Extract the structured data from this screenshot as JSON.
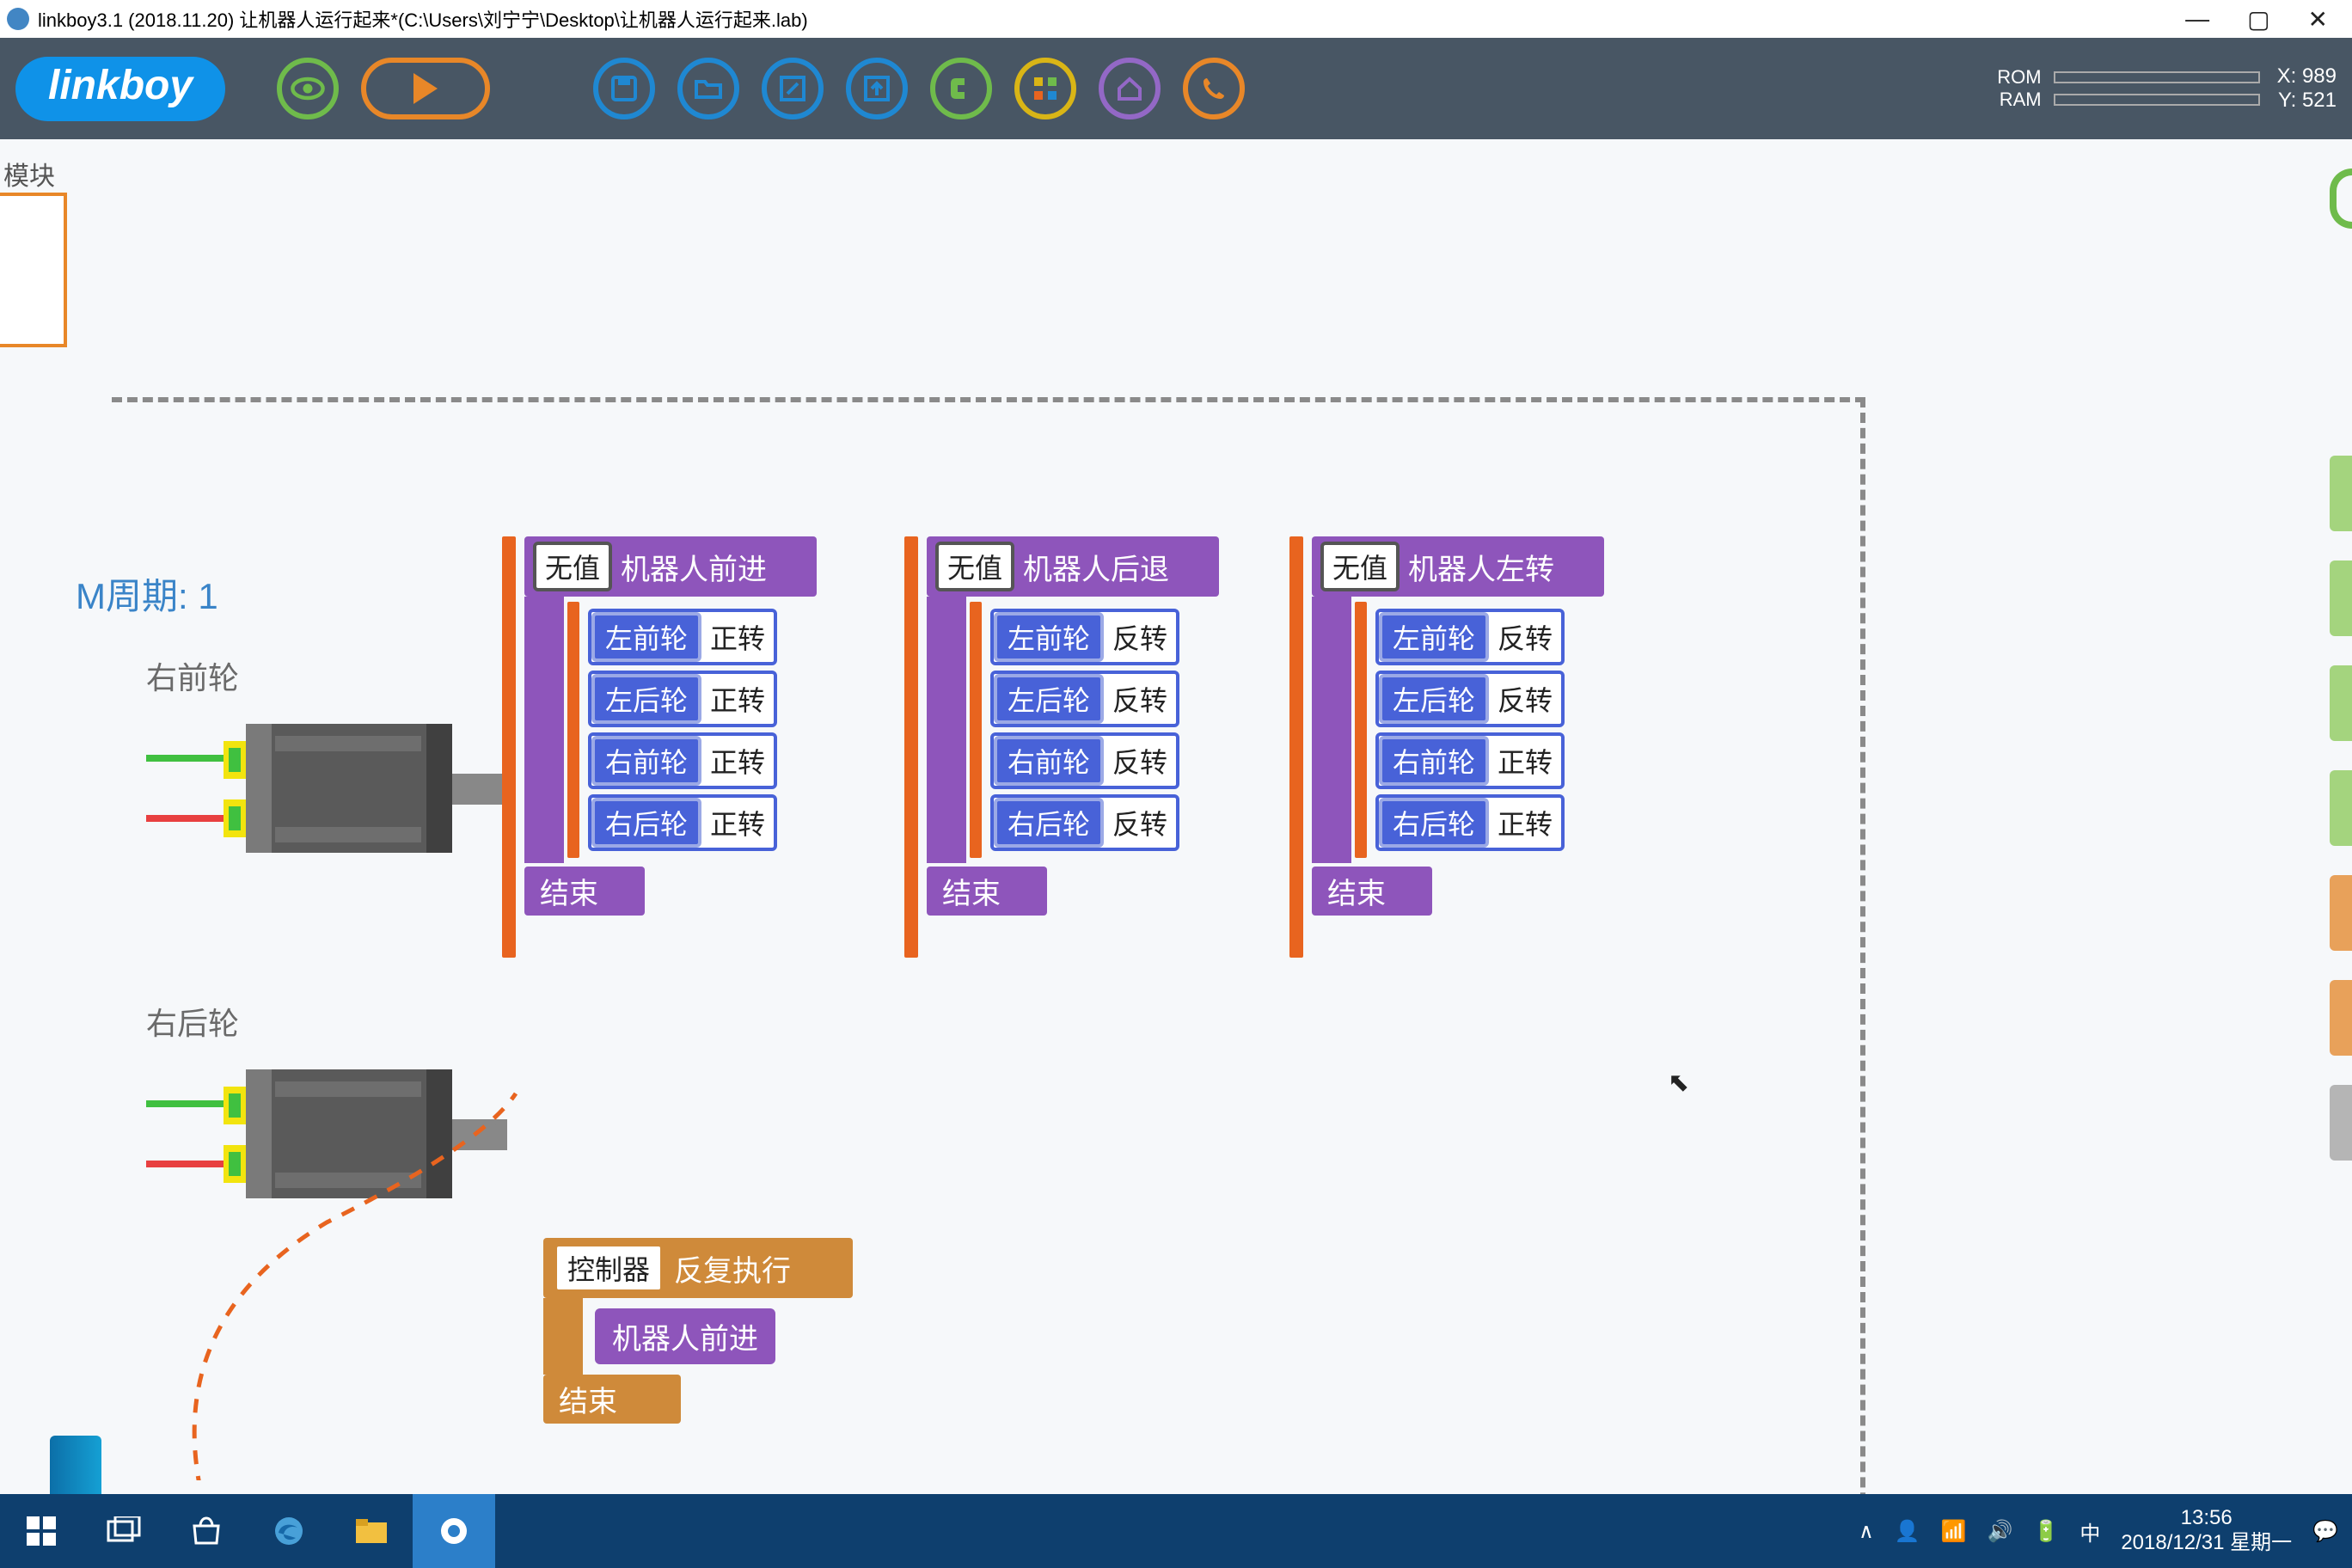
{
  "window": {
    "title": "linkboy3.1 (2018.11.20) 让机器人运行起来*(C:\\Users\\刘宁宁\\Desktop\\让机器人运行起来.lab)"
  },
  "toolbar": {
    "logo": "linkboy",
    "rom_label": "ROM",
    "ram_label": "RAM",
    "x_label": "X: 989",
    "y_label": "Y: 521"
  },
  "workspace": {
    "modules": "模块",
    "cycle": "M周期: 1",
    "motor1_label": "右前轮",
    "motor2_label": "右后轮",
    "novalue": "无值",
    "end": "结束",
    "blocks": [
      {
        "title": "机器人前进",
        "rows": [
          [
            "左前轮",
            "正转"
          ],
          [
            "左后轮",
            "正转"
          ],
          [
            "右前轮",
            "正转"
          ],
          [
            "右后轮",
            "正转"
          ]
        ]
      },
      {
        "title": "机器人后退",
        "rows": [
          [
            "左前轮",
            "反转"
          ],
          [
            "左后轮",
            "反转"
          ],
          [
            "右前轮",
            "反转"
          ],
          [
            "右后轮",
            "反转"
          ]
        ]
      },
      {
        "title": "机器人左转",
        "rows": [
          [
            "左前轮",
            "反转"
          ],
          [
            "左后轮",
            "反转"
          ],
          [
            "右前轮",
            "正转"
          ],
          [
            "右后轮",
            "正转"
          ]
        ]
      }
    ],
    "controller": {
      "tag": "控制器",
      "label": "反复执行",
      "inner": "机器人前进",
      "end": "结束"
    },
    "right_tab_colors": [
      "#a4d47e",
      "#a4d47e",
      "#a4d47e",
      "#a4d47e",
      "#e8a15a",
      "#e8a15a",
      "#b5b5b5"
    ]
  },
  "taskbar": {
    "time": "13:56",
    "date": "2018/12/31 星期一",
    "ime": "中"
  }
}
